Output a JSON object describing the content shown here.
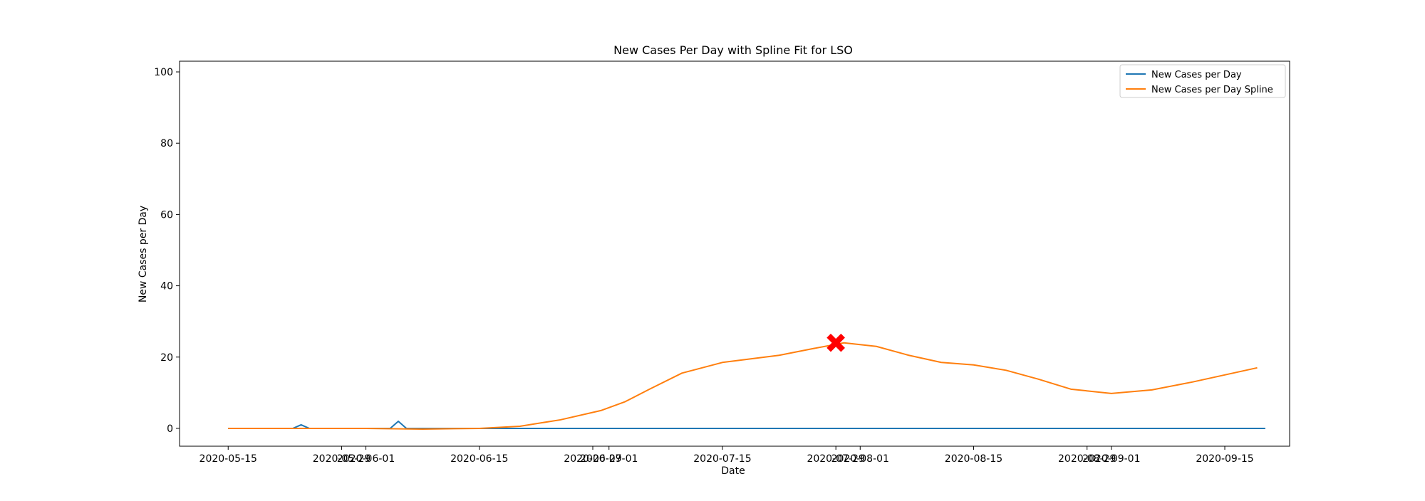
{
  "chart_data": {
    "type": "line",
    "title": "New Cases Per Day with Spline Fit for LSO",
    "xlabel": "Date",
    "ylabel": "New Cases per Day",
    "xlim": [
      "2020-05-09",
      "2020-09-23"
    ],
    "ylim": [
      -5,
      103
    ],
    "x_ticks": [
      "2020-05-15",
      "2020-05-29",
      "2020-06-01",
      "2020-06-15",
      "2020-06-29",
      "2020-07-01",
      "2020-07-15",
      "2020-07-29",
      "2020-08-01",
      "2020-08-15",
      "2020-08-29",
      "2020-09-01",
      "2020-09-15"
    ],
    "y_ticks": [
      0,
      20,
      40,
      60,
      80,
      100
    ],
    "grid": false,
    "legend_position": "upper right",
    "series": [
      {
        "name": "New Cases per Day",
        "color": "#1f77b4",
        "x_start": "2020-05-15",
        "values": [
          0,
          0,
          0,
          0,
          0,
          0,
          0,
          0,
          0,
          1,
          0,
          0,
          0,
          0,
          0,
          0,
          0,
          0,
          0,
          0,
          0,
          2,
          0,
          0,
          0,
          0,
          0,
          0,
          0,
          0,
          0,
          0,
          0,
          0,
          0,
          0,
          0,
          0,
          0,
          0,
          0,
          0,
          0,
          0,
          0,
          0,
          0,
          0,
          0,
          0,
          0,
          0,
          0,
          0,
          0,
          0,
          0,
          0,
          0,
          0,
          0,
          0,
          0,
          0,
          0,
          0,
          0,
          0,
          0,
          0,
          0,
          0,
          0,
          0,
          0,
          0,
          0,
          0,
          0,
          0,
          0,
          0,
          0,
          0,
          0,
          0,
          0,
          0,
          0,
          0,
          0,
          0,
          0,
          0,
          0,
          0,
          0,
          0,
          0,
          0,
          0,
          0,
          0,
          0,
          0,
          0,
          0,
          0,
          0,
          0,
          0,
          0,
          0,
          0,
          0,
          0,
          0,
          0,
          0,
          0,
          0,
          0,
          0,
          0,
          0,
          0,
          0,
          0,
          0
        ]
      },
      {
        "name": "New Cases per Day Spline",
        "color": "#ff7f0e",
        "x": [
          "2020-05-15",
          "2020-06-01",
          "2020-06-08",
          "2020-06-15",
          "2020-06-20",
          "2020-06-25",
          "2020-06-30",
          "2020-07-03",
          "2020-07-06",
          "2020-07-10",
          "2020-07-15",
          "2020-07-22",
          "2020-07-26",
          "2020-07-30",
          "2020-08-03",
          "2020-08-07",
          "2020-08-11",
          "2020-08-15",
          "2020-08-19",
          "2020-08-23",
          "2020-08-27",
          "2020-09-01",
          "2020-09-06",
          "2020-09-11",
          "2020-09-15",
          "2020-09-19"
        ],
        "values": [
          0,
          0,
          -0.2,
          0,
          0.6,
          2.4,
          5.0,
          7.5,
          11.0,
          15.5,
          18.5,
          20.5,
          22.3,
          24.0,
          23.0,
          20.5,
          18.5,
          17.8,
          16.3,
          13.8,
          11.0,
          9.8,
          10.8,
          13.0,
          15.0,
          17.0
        ]
      }
    ],
    "marker": {
      "x": "2020-07-29",
      "y": 24,
      "symbol": "X",
      "color": "#ff0000"
    }
  }
}
